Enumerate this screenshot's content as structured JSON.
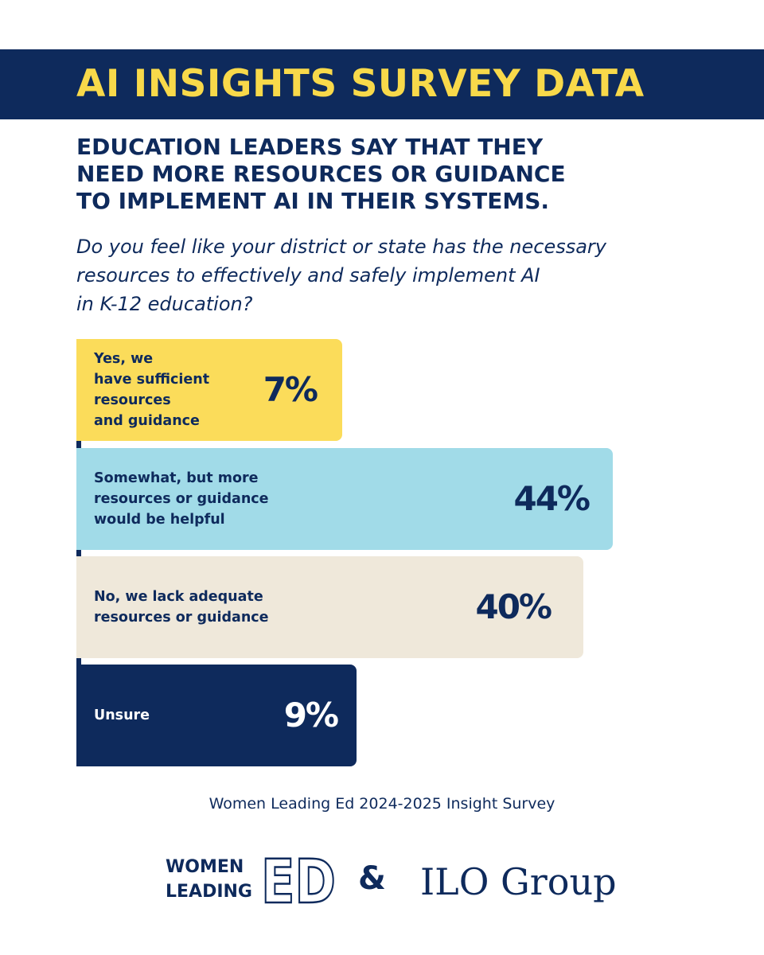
{
  "banner": {
    "title": "AI INSIGHTS SURVEY DATA",
    "background_color": "#0e2a5c",
    "title_color": "#f8d94a"
  },
  "headline": {
    "lines": [
      "EDUCATION LEADERS SAY THAT THEY",
      "NEED MORE RESOURCES OR GUIDANCE",
      "TO IMPLEMENT AI IN THEIR SYSTEMS."
    ]
  },
  "question": {
    "lines": [
      "Do you feel like your district or state has the necessary",
      "resources to effectively and safely implement AI",
      "in K-12 education?"
    ]
  },
  "chart_data": {
    "type": "bar",
    "orientation": "horizontal",
    "title": "Do you feel like your district or state has the necessary resources to effectively and safely implement AI in K-12 education?",
    "categories": [
      "Yes, we\nhave sufficient\nresources\nand guidance",
      "Somewhat, but more\nresources or guidance\nwould be helpful",
      "No, we lack adequate\nresources or guidance",
      "Unsure"
    ],
    "values": [
      7,
      44,
      40,
      9
    ],
    "value_labels": [
      "7%",
      "44%",
      "40%",
      "9%"
    ],
    "unit": "%",
    "colors": [
      "#fbdc5a",
      "#a1dbe8",
      "#efe8da",
      "#0e2a5c"
    ],
    "text_colors": [
      "#0e2a5c",
      "#0e2a5c",
      "#0e2a5c",
      "#ffffff"
    ],
    "xlim": [
      0,
      100
    ],
    "grid": false,
    "legend": "none"
  },
  "footer": {
    "source": "Women Leading Ed 2024-2025 Insight Survey",
    "logo_women_leading": "WOMEN\nLEADING",
    "logo_ed": "ED",
    "ampersand": "&",
    "logo_ilo": "ILO Group"
  }
}
